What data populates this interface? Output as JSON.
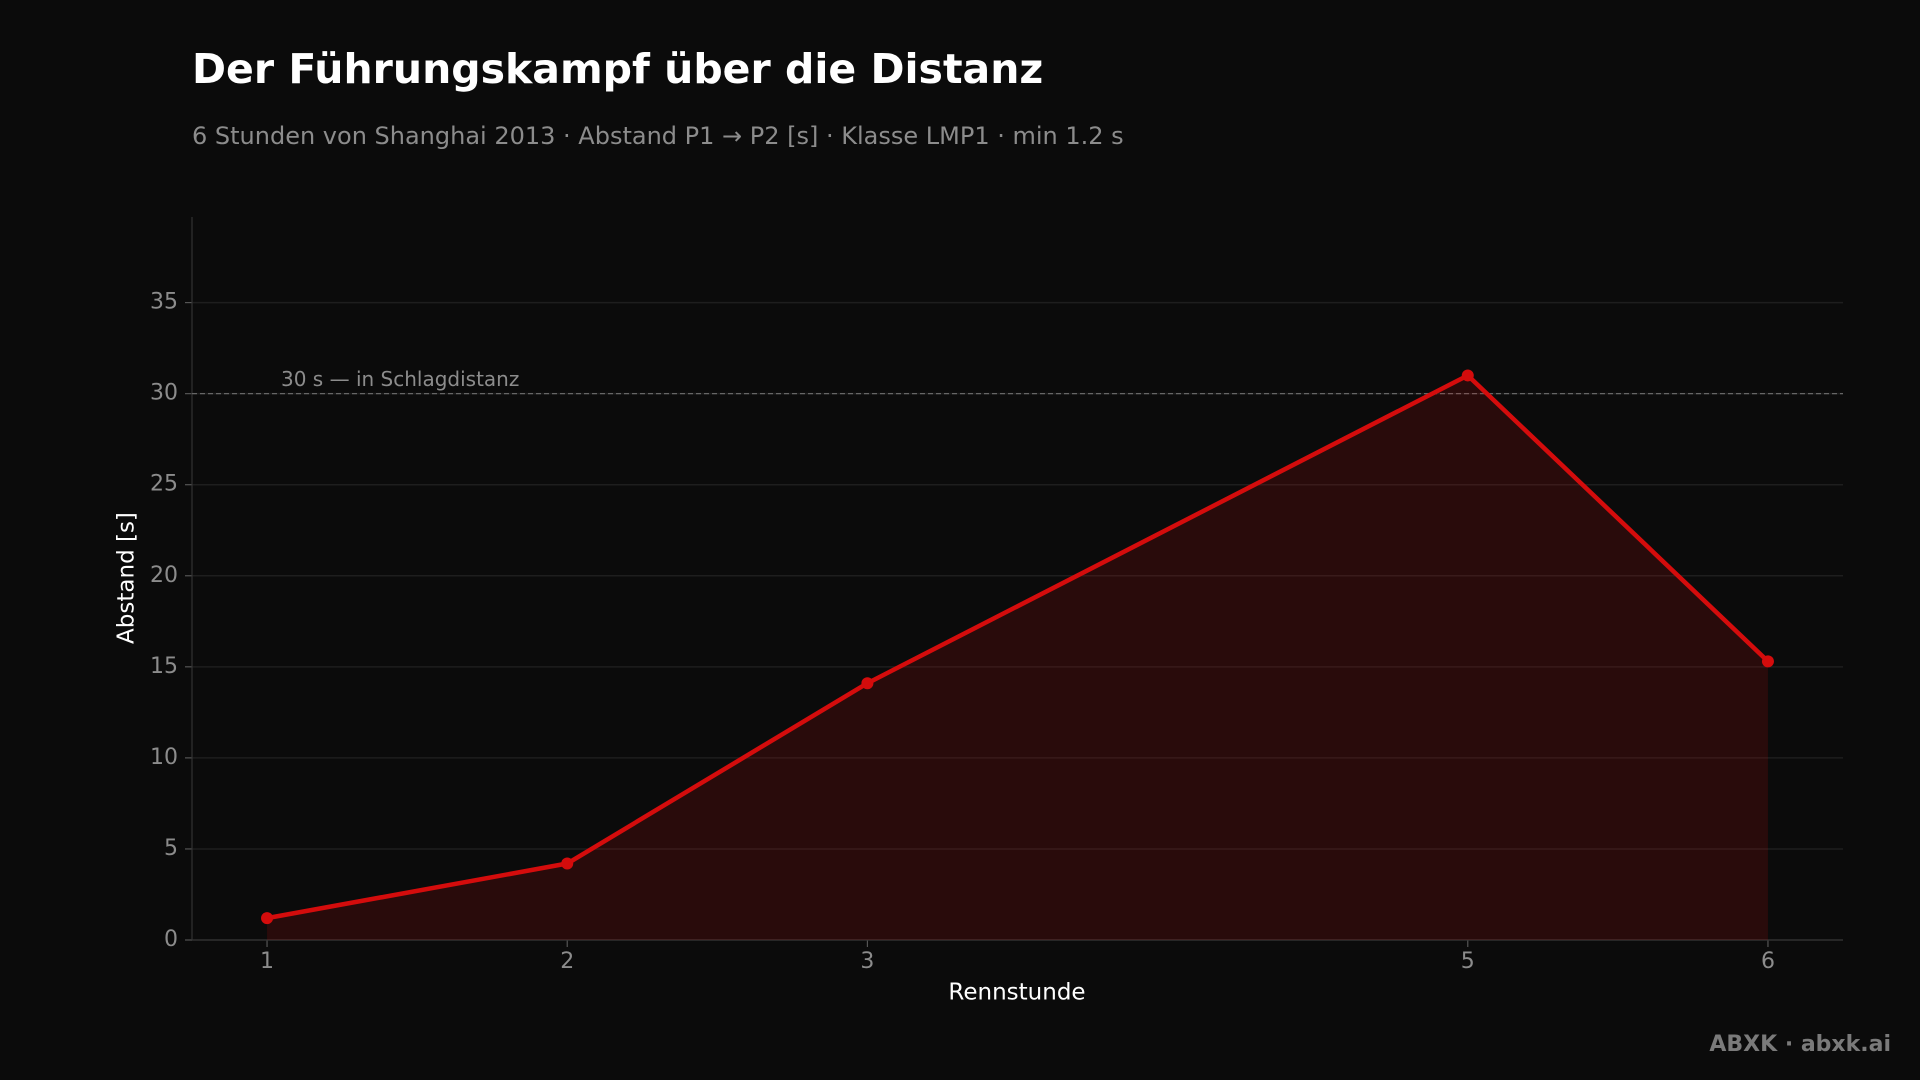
{
  "chart_data": {
    "type": "line",
    "title": "Der Führungskampf über die Distanz",
    "subtitle": "6 Stunden von Shanghai 2013 · Abstand P1 → P2 [s] · Klasse LMP1 · min 1.2 s",
    "x_label": "Rennstunde",
    "y_label": "Abstand [s]",
    "x": [
      1,
      2,
      3,
      5,
      6
    ],
    "series": [
      {
        "name": "Abstand P1 → P2",
        "color": "#d40c0c",
        "values": [
          1.2,
          4.2,
          14.1,
          31.0,
          15.3
        ]
      }
    ],
    "xlim": [
      0.75,
      6.25
    ],
    "xticks": [
      1,
      2,
      3,
      5,
      6
    ],
    "ylim": [
      0,
      39.7
    ],
    "yticks": [
      0,
      5,
      10,
      15,
      20,
      25,
      30,
      35
    ],
    "grid": true,
    "area": true,
    "reference_line": {
      "value": 30,
      "label": "30 s — in Schlagdistanz"
    },
    "footer": "ABXK · abxk.ai"
  }
}
